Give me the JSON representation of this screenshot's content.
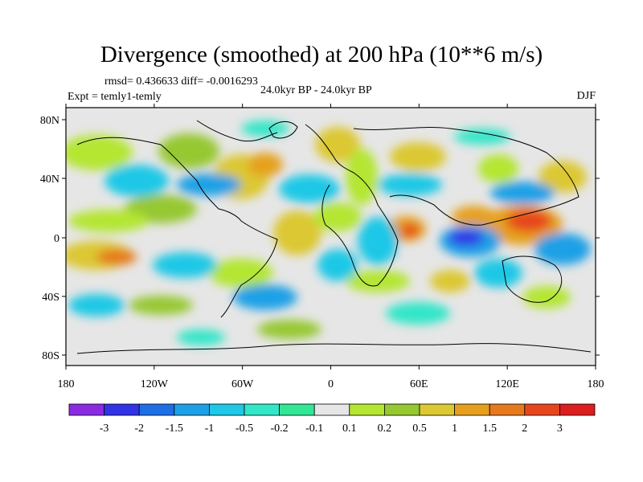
{
  "title": "Divergence (smoothed) at 200 hPa (10**6 m/s)",
  "stats": "rmsd= 0.436633  diff= -0.0016293",
  "experiment": "Expt = temly1-temly",
  "period": "24.0kyr BP - 24.0kyr BP",
  "season": "DJF",
  "lat_labels": [
    "80N",
    "40N",
    "0",
    "40S",
    "80S"
  ],
  "lon_labels": [
    "180",
    "120W",
    "60W",
    "0",
    "60E",
    "120E",
    "180"
  ],
  "colorbar": {
    "labels": [
      "-3",
      "-2",
      "-1.5",
      "-1",
      "-0.5",
      "-0.2",
      "-0.1",
      "0.1",
      "0.2",
      "0.5",
      "1",
      "1.5",
      "2",
      "3"
    ],
    "colors": [
      "#8a2be2",
      "#3232e6",
      "#1e6ee6",
      "#1ea0e6",
      "#1ec8e6",
      "#32e6c8",
      "#32e696",
      "#e6e6e6",
      "#b4e632",
      "#96c832",
      "#dcc832",
      "#e6a01e",
      "#e6781e",
      "#e6461e",
      "#dc1e1e"
    ]
  },
  "map": {
    "background": "#e6e6e6",
    "coast_color": "#000000"
  }
}
